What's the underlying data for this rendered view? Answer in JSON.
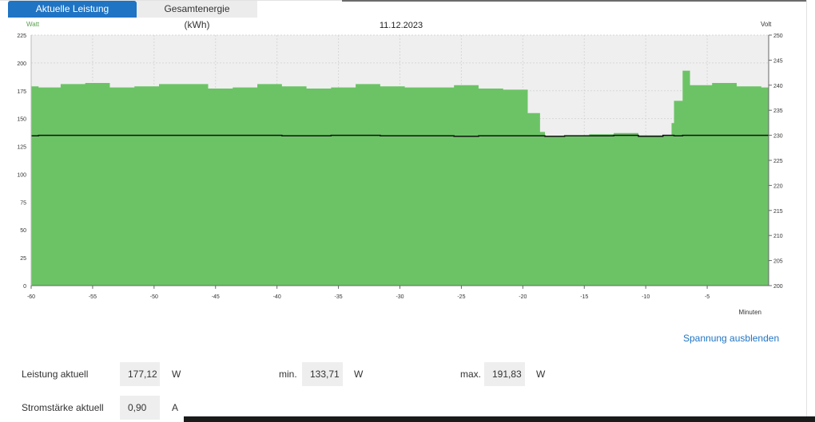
{
  "tabs": [
    {
      "label": "Aktuelle Leistung (Watt)",
      "active": true
    },
    {
      "label": "Gesamtenergie (kWh)",
      "active": false
    }
  ],
  "colors": {
    "power_fill": "#6cc366",
    "voltage_line": "#111111",
    "plot_bg": "#efefef",
    "tab_active": "#1f74c4",
    "link": "#1f74c4"
  },
  "chart_data": {
    "type": "area",
    "title": "11.12.2023",
    "xlabel": "Minuten",
    "ylabel_left": "Watt",
    "ylabel_right": "Volt",
    "xlim": [
      -60,
      0
    ],
    "ylim_left": [
      0,
      225
    ],
    "ylim_right": [
      200,
      250
    ],
    "x_ticks": [
      -60,
      -55,
      -50,
      -45,
      -40,
      -35,
      -30,
      -25,
      -20,
      -15,
      -10,
      -5
    ],
    "y_ticks_left": [
      0,
      25,
      50,
      75,
      100,
      125,
      150,
      175,
      200,
      225
    ],
    "y_ticks_right": [
      200,
      205,
      210,
      215,
      220,
      225,
      230,
      235,
      240,
      245,
      250
    ],
    "grid": true,
    "series": [
      {
        "name": "Watt",
        "axis": "left",
        "step": true,
        "points": [
          [
            -60,
            179
          ],
          [
            -59.4,
            178
          ],
          [
            -57.6,
            181
          ],
          [
            -55.6,
            182
          ],
          [
            -53.6,
            178
          ],
          [
            -51.6,
            179
          ],
          [
            -49.6,
            181
          ],
          [
            -45.6,
            177
          ],
          [
            -43.6,
            178
          ],
          [
            -41.6,
            181
          ],
          [
            -39.6,
            179
          ],
          [
            -37.6,
            177
          ],
          [
            -35.6,
            178
          ],
          [
            -33.6,
            181
          ],
          [
            -31.6,
            179
          ],
          [
            -29.6,
            178
          ],
          [
            -25.6,
            180
          ],
          [
            -23.6,
            177
          ],
          [
            -21.6,
            176
          ],
          [
            -19.6,
            155
          ],
          [
            -18.6,
            138
          ],
          [
            -18.2,
            134
          ],
          [
            -16.6,
            135
          ],
          [
            -14.6,
            136
          ],
          [
            -12.6,
            137
          ],
          [
            -10.6,
            135
          ],
          [
            -8.6,
            135
          ],
          [
            -7.9,
            146
          ],
          [
            -7.7,
            166
          ],
          [
            -7,
            193
          ],
          [
            -6.4,
            180
          ],
          [
            -4.6,
            182
          ],
          [
            -2.6,
            179
          ],
          [
            -0.6,
            178
          ],
          [
            0,
            178
          ]
        ]
      },
      {
        "name": "Volt",
        "axis": "right",
        "step": true,
        "points": [
          [
            -60,
            229.9
          ],
          [
            -59.4,
            230.0
          ],
          [
            -57.6,
            230.0
          ],
          [
            -55.6,
            230.0
          ],
          [
            -53.6,
            230.0
          ],
          [
            -51.6,
            230.0
          ],
          [
            -49.6,
            230.0
          ],
          [
            -45.6,
            230.0
          ],
          [
            -43.6,
            230.0
          ],
          [
            -41.6,
            230.0
          ],
          [
            -39.6,
            229.9
          ],
          [
            -37.6,
            229.9
          ],
          [
            -35.6,
            230.0
          ],
          [
            -33.6,
            230.0
          ],
          [
            -31.6,
            229.9
          ],
          [
            -29.6,
            229.9
          ],
          [
            -25.6,
            229.8
          ],
          [
            -23.6,
            229.9
          ],
          [
            -21.6,
            229.9
          ],
          [
            -19.6,
            229.9
          ],
          [
            -18.6,
            229.9
          ],
          [
            -18.2,
            229.8
          ],
          [
            -16.6,
            229.9
          ],
          [
            -14.6,
            229.9
          ],
          [
            -12.6,
            230.0
          ],
          [
            -10.6,
            229.8
          ],
          [
            -8.6,
            230.0
          ],
          [
            -7.9,
            230.0
          ],
          [
            -7.7,
            229.9
          ],
          [
            -7,
            230.0
          ],
          [
            -6.4,
            230.0
          ],
          [
            -4.6,
            230.0
          ],
          [
            -2.6,
            230.0
          ],
          [
            -0.6,
            230.0
          ],
          [
            0,
            230.0
          ]
        ]
      }
    ]
  },
  "toggle_voltage_label": "Spannung ausblenden",
  "stats": {
    "power_label": "Leistung aktuell",
    "power_value": "177,12",
    "power_unit": "W",
    "min_label": "min.",
    "min_value": "133,71",
    "min_unit": "W",
    "max_label": "max.",
    "max_value": "191,83",
    "max_unit": "W",
    "current_label": "Stromstärke aktuell",
    "current_value": "0,90",
    "current_unit": "A"
  }
}
